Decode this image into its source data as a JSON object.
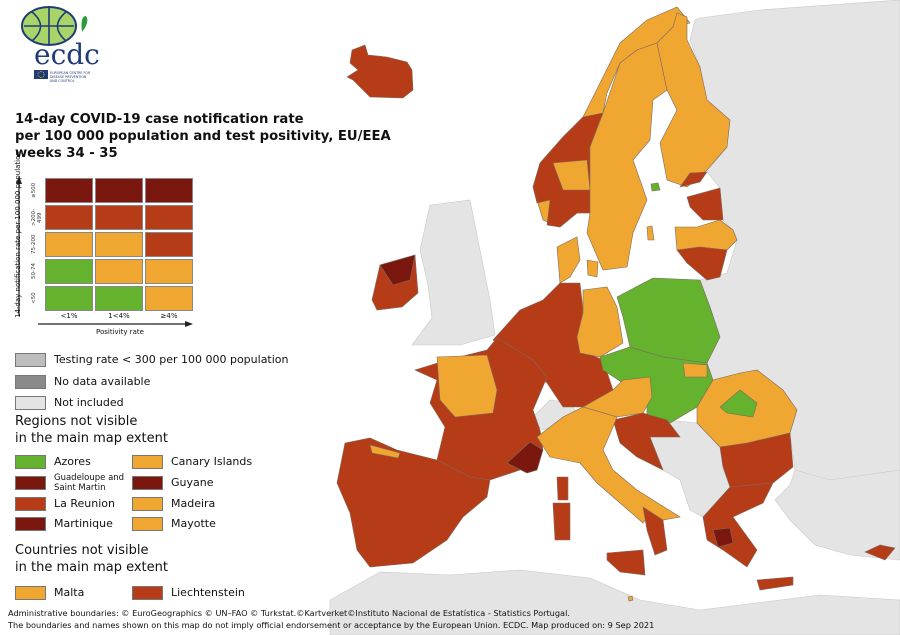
{
  "colors": {
    "dark_red": "#7a1810",
    "red": "#b63c17",
    "orange": "#f0a732",
    "green": "#64b22e",
    "testing_low": "#bdbdbd",
    "no_data": "#8a8a8a",
    "not_included": "#e4e4e4",
    "sea": "#ffffff",
    "border": "#7d6a60"
  },
  "logo": {
    "text": "ecdc",
    "subtitle": "EUROPEAN CENTRE FOR DISEASE PREVENTION AND CONTROL"
  },
  "title": {
    "line1": "14-day COVID-19 case notification rate",
    "line2": "per 100 000 population and test positivity, EU/EEA",
    "line3": "weeks 34 - 35"
  },
  "matrix": {
    "y_axis_label": "14-day notification rate per 100 000 population",
    "x_axis_label": "Positivity rate",
    "rows": [
      "≥500",
      ">200-499",
      "75-200",
      "50-74",
      "<50"
    ],
    "columns": [
      "<1%",
      "1<4%",
      "≥4%"
    ],
    "cells": [
      [
        "dark_red",
        "dark_red",
        "dark_red"
      ],
      [
        "red",
        "red",
        "red"
      ],
      [
        "orange",
        "orange",
        "red"
      ],
      [
        "green",
        "orange",
        "orange"
      ],
      [
        "green",
        "green",
        "orange"
      ]
    ]
  },
  "legend": {
    "other": [
      {
        "label": "Testing rate < 300 per 100 000 population",
        "color": "testing_low"
      },
      {
        "label": "No data available",
        "color": "no_data"
      },
      {
        "label": "Not included",
        "color": "not_included"
      }
    ],
    "regions_header_1": "Regions not visible",
    "regions_header_2": "in the main map extent",
    "regions": [
      {
        "label": "Azores",
        "color": "green"
      },
      {
        "label": "Guadeloupe and Saint Martin",
        "color": "dark_red"
      },
      {
        "label": "La Reunion",
        "color": "red"
      },
      {
        "label": "Martinique",
        "color": "dark_red"
      },
      {
        "label": "Canary Islands",
        "color": "orange"
      },
      {
        "label": "Guyane",
        "color": "dark_red"
      },
      {
        "label": "Madeira",
        "color": "orange"
      },
      {
        "label": "Mayotte",
        "color": "orange"
      }
    ],
    "countries_header_1": "Countries not visible",
    "countries_header_2": "in the main map extent",
    "countries": [
      {
        "label": "Malta",
        "color": "orange"
      },
      {
        "label": "Liechtenstein",
        "color": "red"
      }
    ]
  },
  "footer": {
    "line1": "Administrative boundaries: © EuroGeographics © UN–FAO © Turkstat.©Kartverket©Instituto Nacional de Estatística - Statistics Portugal.",
    "line2": "The boundaries and names shown on this map do not imply official endorsement or acceptance by the European Union. ECDC. Map produced on: 9 Sep 2021"
  }
}
